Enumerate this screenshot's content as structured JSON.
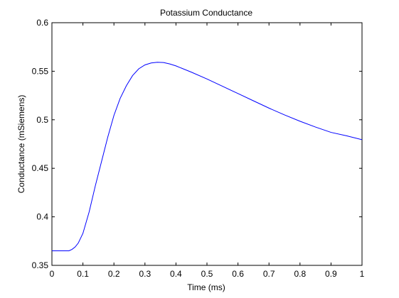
{
  "chart_data": {
    "type": "line",
    "title": "Potassium Conductance",
    "xlabel": "Time (ms)",
    "ylabel": "Conductance (mSiemens)",
    "xlim": [
      0,
      1
    ],
    "ylim": [
      0.35,
      0.6
    ],
    "grid": false,
    "x_ticks": [
      0,
      0.1,
      0.2,
      0.3,
      0.4,
      0.5,
      0.6,
      0.7,
      0.8,
      0.9,
      1
    ],
    "x_tick_labels": [
      "0",
      "0.1",
      "0.2",
      "0.3",
      "0.4",
      "0.5",
      "0.6",
      "0.7",
      "0.8",
      "0.9",
      "1"
    ],
    "y_ticks": [
      0.35,
      0.4,
      0.45,
      0.5,
      0.55,
      0.6
    ],
    "y_tick_labels": [
      "0.35",
      "0.4",
      "0.45",
      "0.5",
      "0.55",
      "0.6"
    ],
    "series": [
      {
        "color": "#0000ff",
        "x": [
          0,
          0.02,
          0.04,
          0.055,
          0.065,
          0.075,
          0.085,
          0.1,
          0.12,
          0.14,
          0.16,
          0.18,
          0.2,
          0.22,
          0.24,
          0.26,
          0.28,
          0.3,
          0.32,
          0.34,
          0.36,
          0.38,
          0.4,
          0.45,
          0.5,
          0.55,
          0.6,
          0.65,
          0.7,
          0.75,
          0.8,
          0.85,
          0.9,
          0.95,
          1.0
        ],
        "y": [
          0.365,
          0.365,
          0.365,
          0.365,
          0.3665,
          0.369,
          0.373,
          0.383,
          0.405,
          0.432,
          0.457,
          0.482,
          0.5045,
          0.522,
          0.535,
          0.5455,
          0.5525,
          0.5565,
          0.5585,
          0.5592,
          0.559,
          0.5575,
          0.5555,
          0.549,
          0.542,
          0.5345,
          0.527,
          0.5195,
          0.512,
          0.505,
          0.4985,
          0.4925,
          0.487,
          0.4835,
          0.4795
        ]
      }
    ]
  }
}
